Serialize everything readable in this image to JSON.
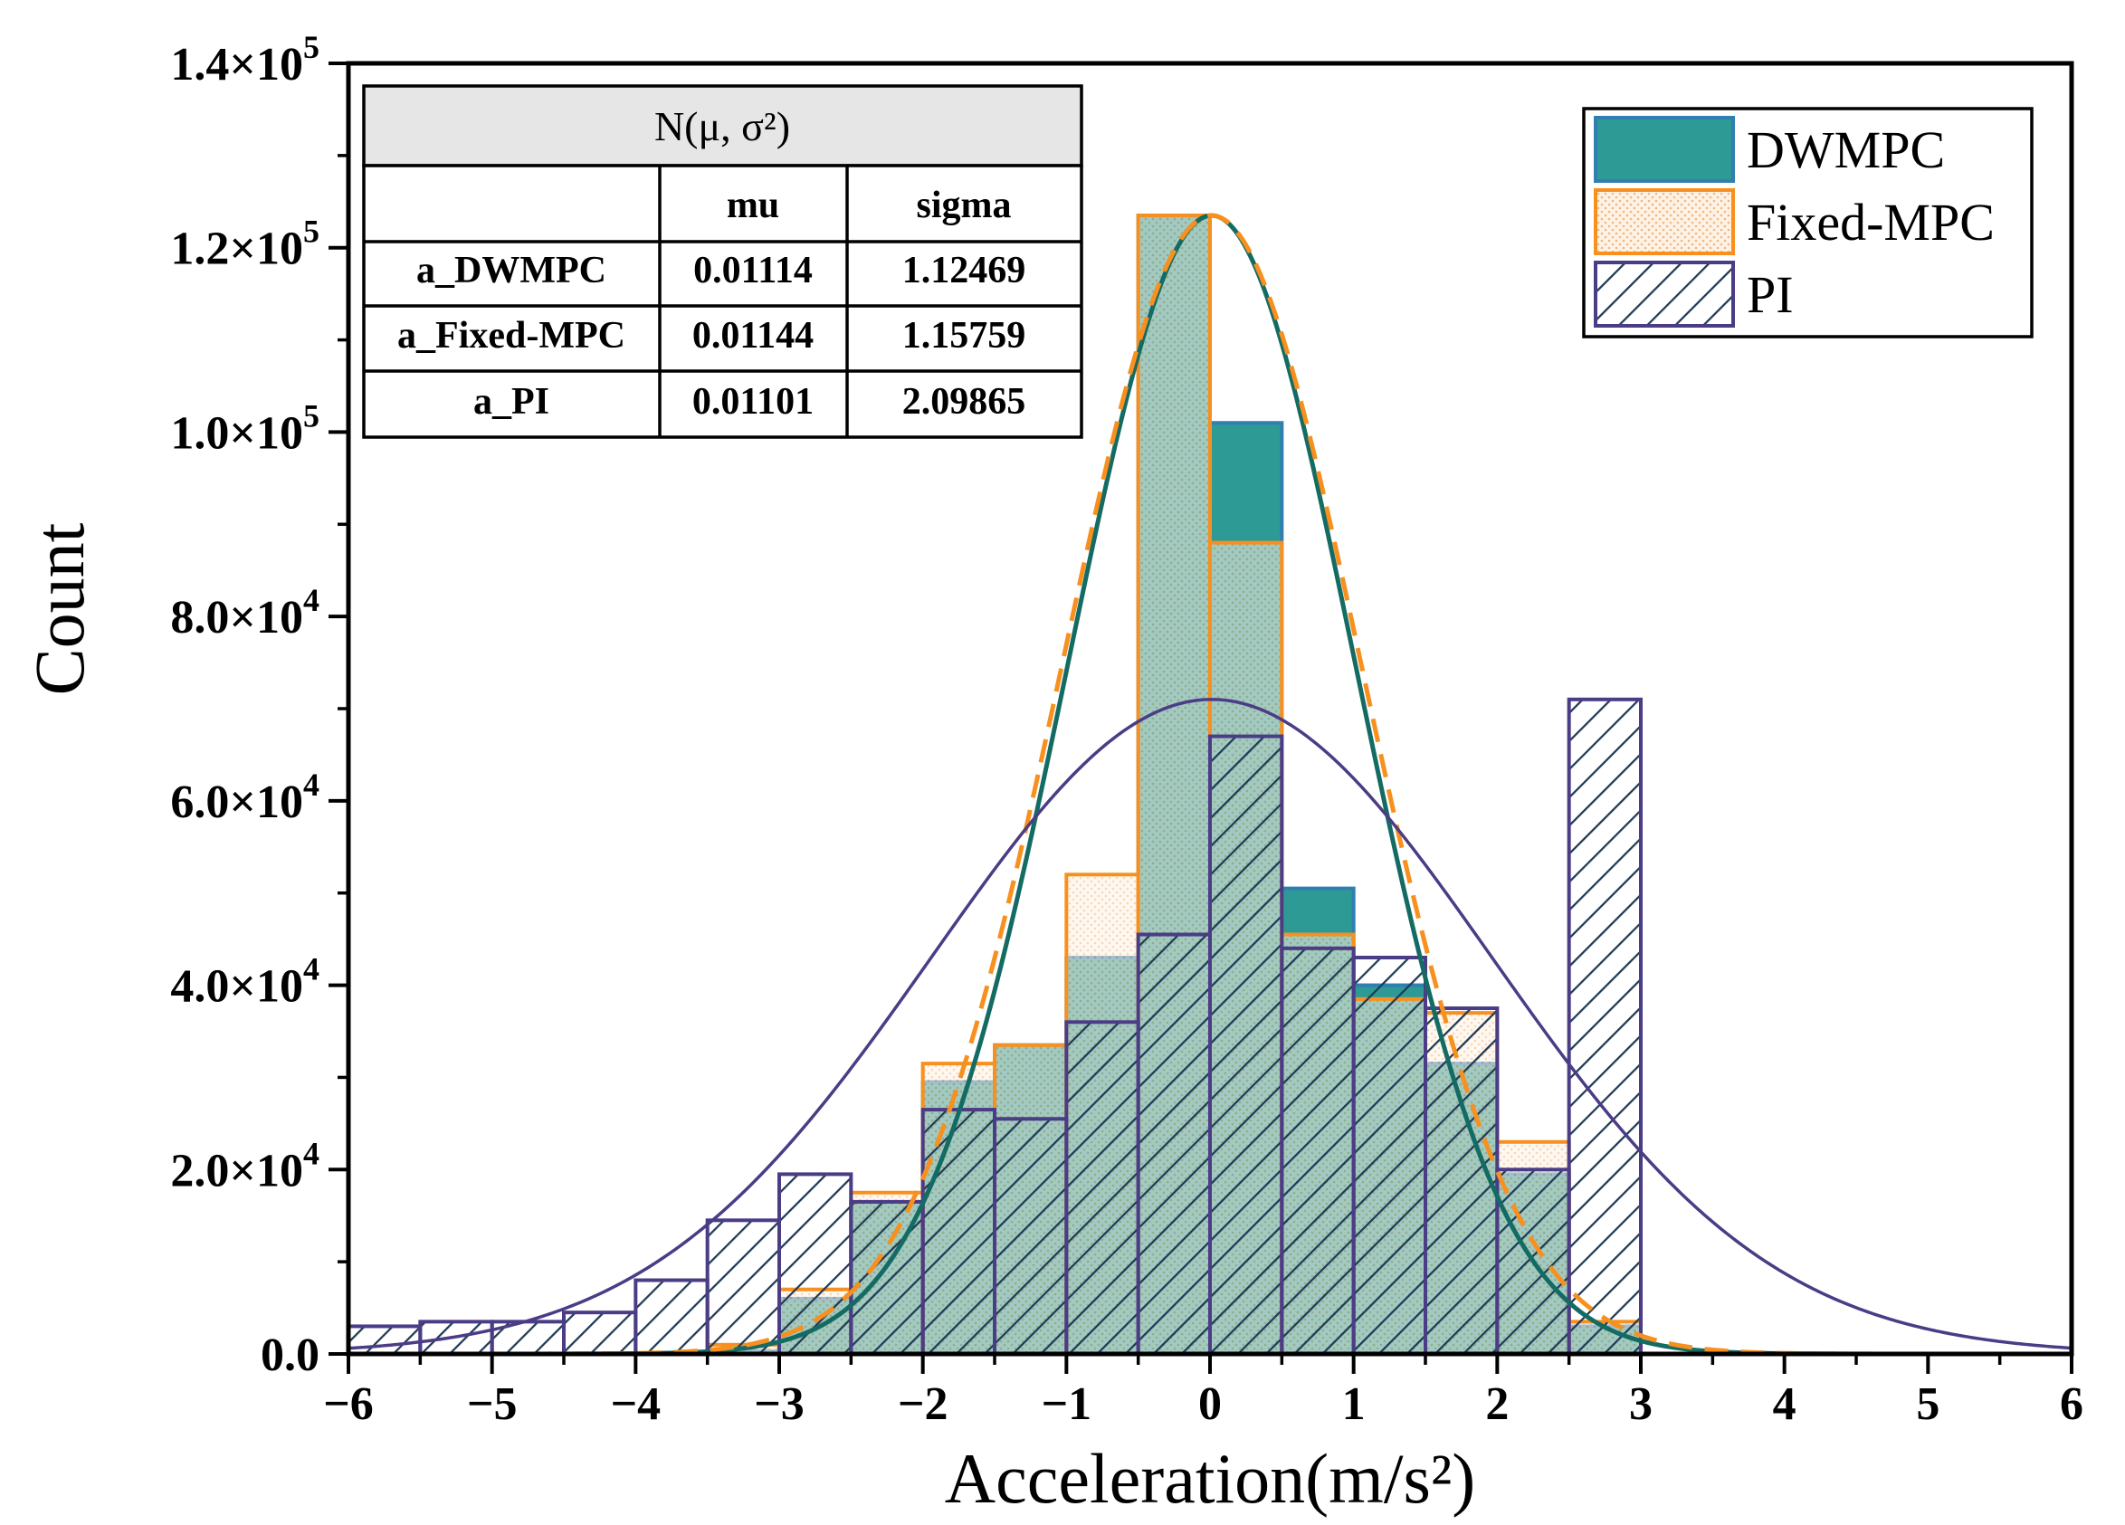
{
  "colors": {
    "dwmpc_fill": "#2e9a96",
    "dwmpc_edge": "#2f7fb0",
    "fixed_edge": "#f7901e",
    "fixed_fill": "#fbe0c6",
    "pi_edge": "#4b3c86",
    "pi_hatch": "#1f3a55",
    "dwmpc_curve": "#146b63",
    "fixed_curve": "#f7901e",
    "pi_curve": "#4b3c86",
    "table_header": "#e6e6e6"
  },
  "chart_data": {
    "type": "bar",
    "title": "",
    "xlabel": "Acceleration(m/s²)",
    "ylabel": "Count",
    "xlim": [
      -6,
      6
    ],
    "ylim": [
      0,
      140000
    ],
    "x_ticks": [
      -6,
      -5,
      -4,
      -3,
      -2,
      -1,
      0,
      1,
      2,
      3,
      4,
      5,
      6
    ],
    "x_tick_labels": [
      "−6",
      "−5",
      "−4",
      "−3",
      "−2",
      "−1",
      "0",
      "1",
      "2",
      "3",
      "4",
      "5",
      "6"
    ],
    "y_ticks": [
      0,
      20000,
      40000,
      60000,
      80000,
      100000,
      120000,
      140000
    ],
    "y_tick_mantissa": [
      "0.0",
      "2.0×10",
      "4.0×10",
      "6.0×10",
      "8.0×10",
      "1.0×10",
      "1.2×10",
      "1.4×10"
    ],
    "y_tick_exponent": [
      "",
      "4",
      "4",
      "4",
      "4",
      "5",
      "5",
      "5"
    ],
    "bin_width": 0.5,
    "bin_edges": [
      -6,
      -5.5,
      -5,
      -4.5,
      -4,
      -3.5,
      -3,
      -2.5,
      -2,
      -1.5,
      -1,
      -0.5,
      0,
      0.5,
      1,
      1.5,
      2,
      2.5
    ],
    "series": [
      {
        "name": "DWMPC",
        "values": [
          0,
          0,
          0,
          0,
          0,
          300,
          6000,
          16500,
          29500,
          33500,
          43000,
          123500,
          101000,
          50500,
          40000,
          31500,
          19500,
          3000
        ]
      },
      {
        "name": "Fixed-MPC",
        "values": [
          0,
          0,
          0,
          0,
          0,
          1000,
          7000,
          17500,
          31500,
          33500,
          52000,
          123500,
          88000,
          45500,
          38500,
          37000,
          23000,
          3500
        ]
      },
      {
        "name": "PI",
        "values": [
          3000,
          3500,
          3500,
          4500,
          8000,
          14500,
          19500,
          16500,
          26500,
          25500,
          36000,
          45500,
          67000,
          44000,
          43000,
          37500,
          20000,
          71000
        ]
      }
    ],
    "fit_curves": [
      {
        "name": "DWMPC fit",
        "peak": 123500,
        "center": 0.01114,
        "width": 1.0,
        "style": "solid"
      },
      {
        "name": "Fixed-MPC fit",
        "peak": 123500,
        "center": 0.01144,
        "width": 1.04,
        "style": "dashed"
      },
      {
        "name": "PI fit",
        "peak": 71000,
        "center": 0.01101,
        "width": 1.95,
        "style": "solid"
      }
    ],
    "legend": {
      "position": "top-right",
      "entries": [
        "DWMPC",
        "Fixed-MPC",
        "PI"
      ]
    },
    "table": {
      "title": "N(μ, σ²)",
      "headers": [
        "",
        "mu",
        "sigma"
      ],
      "rows": [
        [
          "a_DWMPC",
          "0.01114",
          "1.12469"
        ],
        [
          "a_Fixed-MPC",
          "0.01144",
          "1.15759"
        ],
        [
          "a_PI",
          "0.01101",
          "2.09865"
        ]
      ]
    }
  }
}
